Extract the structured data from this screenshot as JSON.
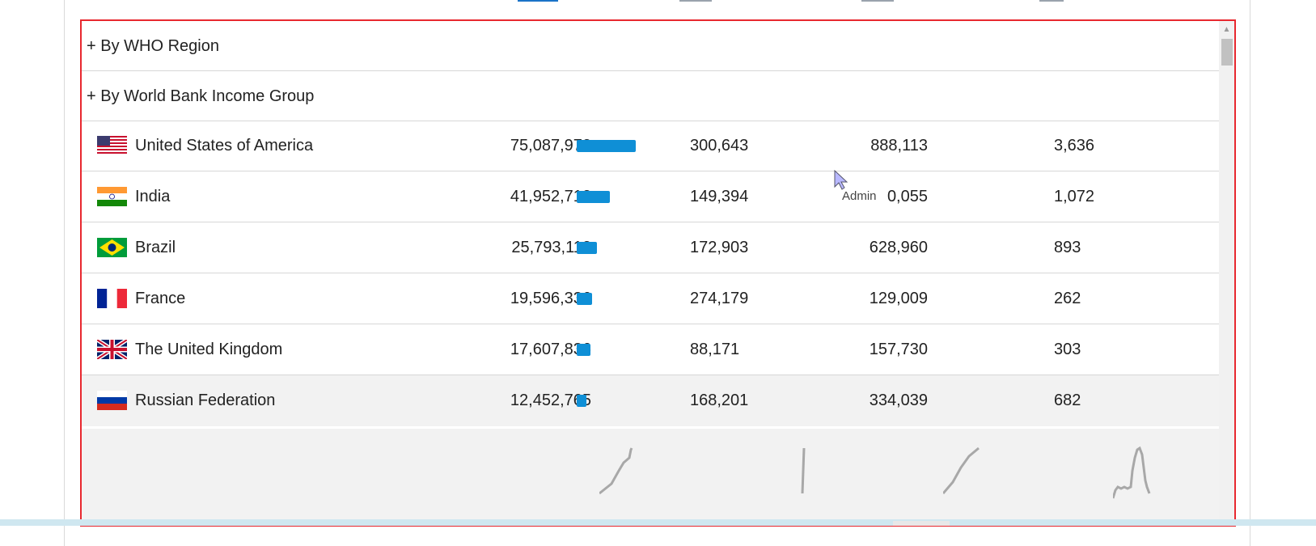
{
  "groups": {
    "who_region": "+ By WHO Region",
    "income_group": "+ By World Bank Income Group"
  },
  "rows": [
    {
      "country": "United States of America",
      "flag": "us-flag",
      "cases": "75,087,972",
      "cases_bar_fraction": 1.0,
      "col2": "300,643",
      "col3": "888,113",
      "col4": "3,636"
    },
    {
      "country": "India",
      "flag": "india-flag",
      "cases": "41,952,712",
      "cases_bar_fraction": 0.56,
      "col2": "149,394",
      "col3": "0,055",
      "col4": "1,072"
    },
    {
      "country": "Brazil",
      "flag": "brazil-flag",
      "cases": "25,793,112",
      "cases_bar_fraction": 0.34,
      "col2": "172,903",
      "col3": "628,960",
      "col4": "893"
    },
    {
      "country": "France",
      "flag": "france-flag",
      "cases": "19,596,336",
      "cases_bar_fraction": 0.26,
      "col2": "274,179",
      "col3": "129,009",
      "col4": "262"
    },
    {
      "country": "The United Kingdom",
      "flag": "uk-flag",
      "cases": "17,607,836",
      "cases_bar_fraction": 0.23,
      "col2": "88,171",
      "col3": "157,730",
      "col4": "303"
    },
    {
      "country": "Russian Federation",
      "flag": "russia-flag",
      "cases": "12,452,765",
      "cases_bar_fraction": 0.17,
      "col2": "168,201",
      "col3": "334,039",
      "col4": "682"
    }
  ],
  "tooltip": {
    "text": "Admin"
  },
  "colors": {
    "bar": "#0f8fd6",
    "highlight": "#e8282f",
    "sparkline": "#a8a8a8"
  },
  "icons": {
    "cursor": "mouse-pointer-icon",
    "scroll_up": "scroll-up-arrow-icon"
  }
}
